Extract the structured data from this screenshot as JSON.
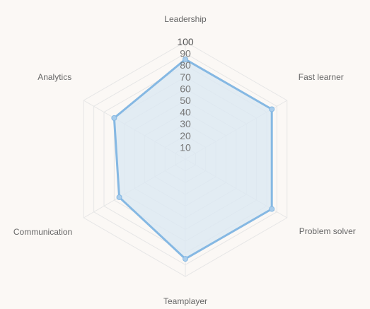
{
  "chart_data": {
    "type": "radar",
    "categories": [
      "Leadership",
      "Fast learner",
      "Problem solver",
      "Teamplayer",
      "Communication",
      "Analytics"
    ],
    "series": [
      {
        "values": [
          85,
          85,
          85,
          85,
          65,
          70
        ]
      }
    ],
    "rlim": [
      0,
      100
    ],
    "ticks": [
      "10",
      "20",
      "30",
      "40",
      "50",
      "60",
      "70",
      "80",
      "90",
      "100"
    ],
    "grid": true,
    "legend": "none",
    "colors": {
      "line": "#85b8e3",
      "fill": "#dce8f2",
      "point": "#a9cdec",
      "grid": "#e6e6e6"
    }
  }
}
